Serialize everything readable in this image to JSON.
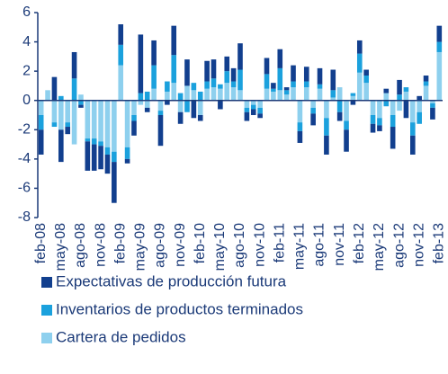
{
  "chart_data": {
    "type": "stacked-bar",
    "categories": [
      "feb-08",
      null,
      null,
      "may-08",
      null,
      null,
      "ago-08",
      null,
      null,
      "nov-08",
      null,
      null,
      "feb-09",
      null,
      null,
      "may-09",
      null,
      null,
      "ago-09",
      null,
      null,
      "nov-09",
      null,
      null,
      "feb-10",
      null,
      null,
      "may-10",
      null,
      null,
      "ago-10",
      null,
      null,
      "nov-10",
      null,
      null,
      "feb-11",
      null,
      null,
      "may-11",
      null,
      null,
      "ago-11",
      null,
      null,
      "nov-11",
      null,
      null,
      "feb-12",
      null,
      null,
      "may-12",
      null,
      null,
      "ago-12",
      null,
      null,
      "nov-12",
      null,
      null,
      "feb-13"
    ],
    "series": [
      {
        "name": "Expectativas de producción futura",
        "color": "#123f8e",
        "values": [
          -1.7,
          0,
          1.6,
          -2.2,
          -0.5,
          1.8,
          -0.2,
          -2.0,
          -1.8,
          -1.6,
          -1.3,
          -2.8,
          1.4,
          -0.3,
          -1.0,
          4.0,
          -0.3,
          1.7,
          -2.1,
          -0.3,
          2.0,
          -0.8,
          1.8,
          -1.2,
          -0.4,
          1.4,
          1.3,
          -0.6,
          1.0,
          0.9,
          1.8,
          -0.6,
          -0.4,
          -0.3,
          1.1,
          0.4,
          1.3,
          0.2,
          1.1,
          -0.8,
          1.0,
          -0.8,
          1.1,
          -1.3,
          1.4,
          -0.6,
          -1.5,
          -0.3,
          0.9,
          0.4,
          -0.6,
          -0.4,
          0.3,
          -1.5,
          1.0,
          -1.2,
          -1.3,
          0.3,
          0.4,
          -0.8,
          1.1
        ]
      },
      {
        "name": "Inventarios de productos terminados",
        "color": "#1ba1dd",
        "values": [
          -1.0,
          0,
          -0.3,
          0.3,
          -0.3,
          1.5,
          -0.3,
          -0.2,
          -0.4,
          -0.3,
          -0.5,
          -0.7,
          1.4,
          -0.8,
          -0.4,
          0.5,
          0.6,
          1.6,
          -0.3,
          0.7,
          1.9,
          0.5,
          -0.8,
          0.5,
          0.6,
          0.5,
          0.6,
          0.3,
          0.8,
          0.4,
          1.4,
          -0.3,
          -0.3,
          -0.4,
          1.0,
          0.2,
          1.5,
          0.3,
          0.4,
          -0.6,
          0.4,
          -0.4,
          0.3,
          -1.2,
          0.5,
          -0.8,
          -0.6,
          0.2,
          1.3,
          0.5,
          -0.6,
          -0.5,
          -0.4,
          -0.8,
          0.4,
          0.3,
          -0.9,
          -0.8,
          0.3,
          -0.3,
          0.7
        ]
      },
      {
        "name": "Cartera de pedidos",
        "color": "#8ed0ee",
        "values": [
          -1.0,
          0.7,
          -1.5,
          -2.0,
          -1.5,
          -3.0,
          0.4,
          -2.6,
          -2.6,
          -2.8,
          -3.2,
          -3.5,
          2.4,
          -3.2,
          -1.0,
          -0.3,
          -0.5,
          0.8,
          -0.7,
          0.6,
          1.2,
          -0.8,
          1.0,
          0.7,
          -1.0,
          0.8,
          0.9,
          0.8,
          1.2,
          0.9,
          0.7,
          -0.5,
          -0.3,
          -0.5,
          0.8,
          0.6,
          0.7,
          0.4,
          0.9,
          -1.5,
          0.9,
          -0.5,
          0.8,
          -1.2,
          0.2,
          0.9,
          -1.4,
          0.3,
          1.9,
          1.2,
          -1.0,
          -1.2,
          0.5,
          -1.0,
          -0.7,
          0.6,
          -1.5,
          -0.8,
          1.0,
          -0.2,
          3.3
        ]
      }
    ],
    "ylim": [
      -8,
      6
    ],
    "yticks": [
      -8,
      -6,
      -4,
      -2,
      0,
      2,
      4,
      6
    ],
    "stack_order": [
      2,
      1,
      0
    ]
  }
}
